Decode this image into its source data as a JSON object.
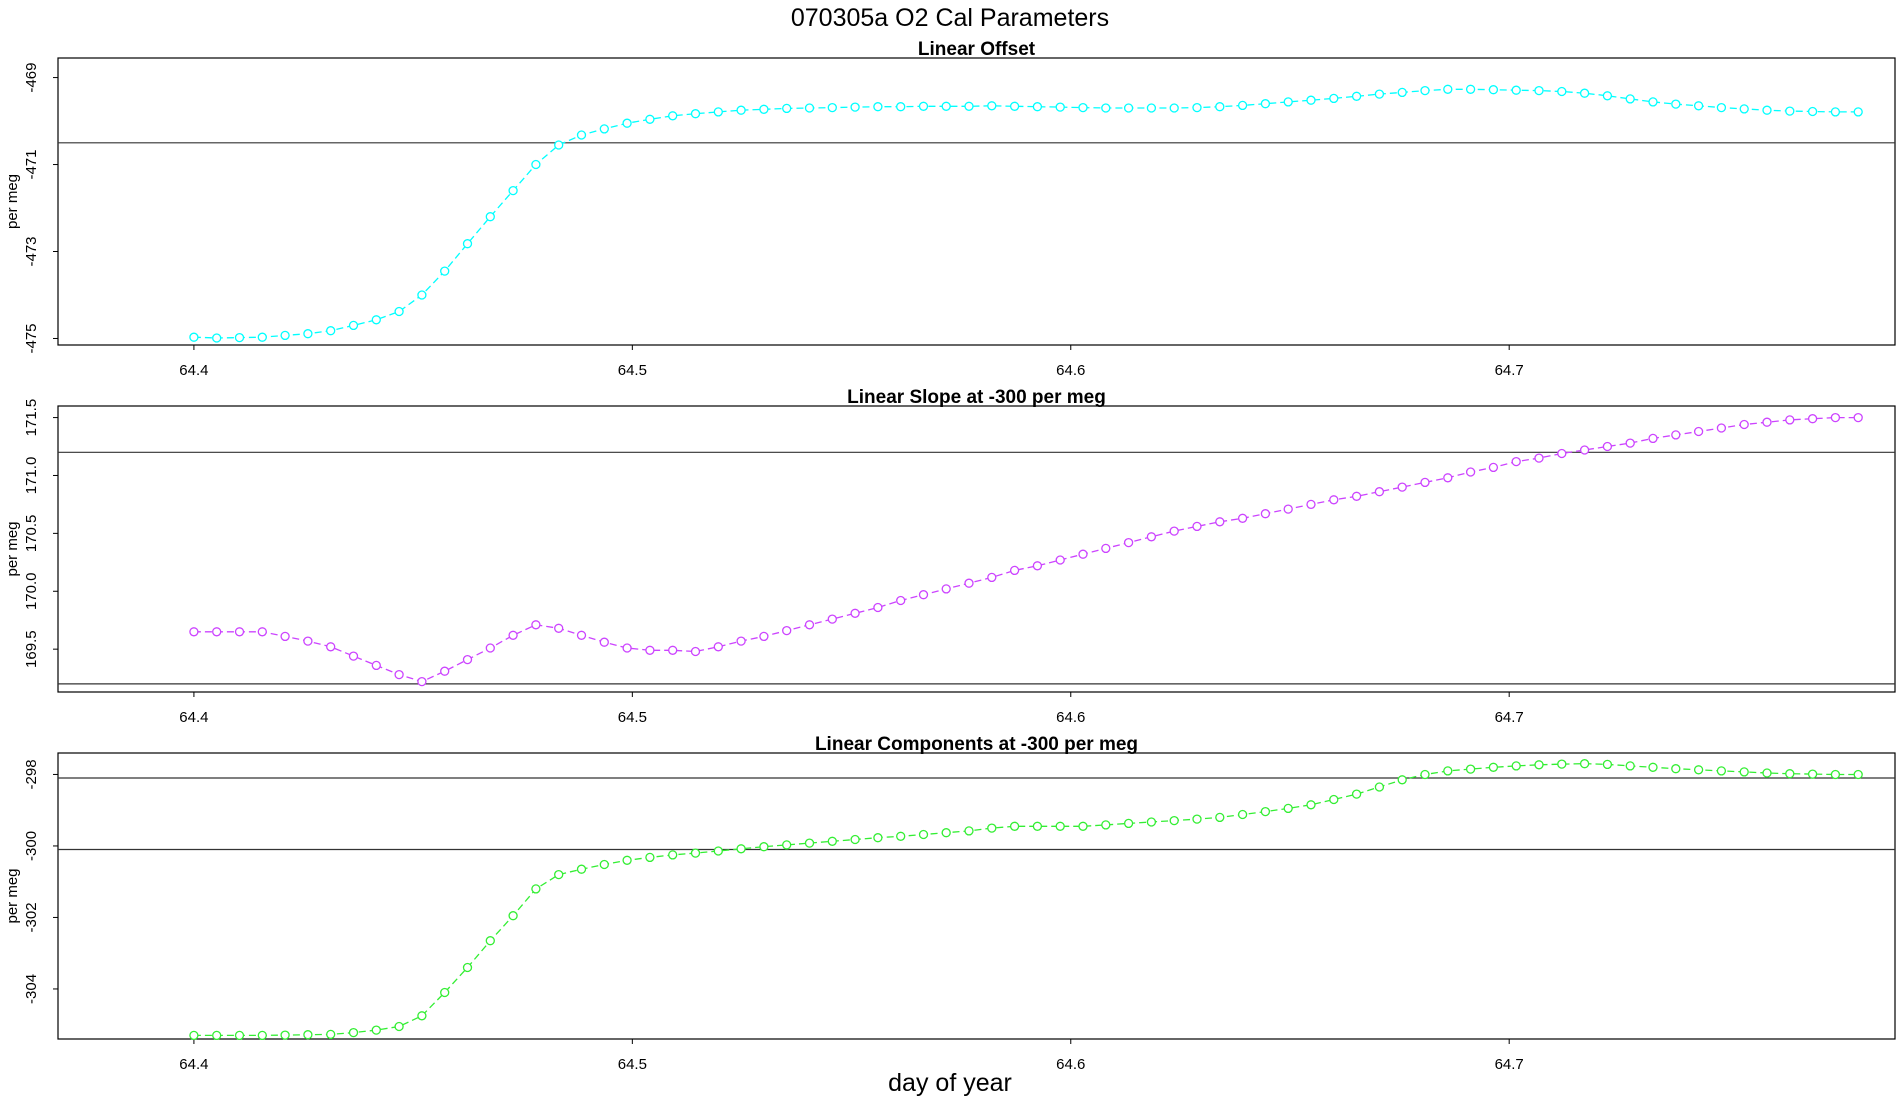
{
  "figure": {
    "title": "070305a   O2 Cal Parameters",
    "xlabel": "day of year"
  },
  "chart_data": [
    {
      "type": "line",
      "title": "Linear Offset",
      "ylabel": "per meg",
      "color": "#00ffff",
      "xlim": [
        64.369,
        64.788
      ],
      "ylim": [
        -475.15,
        -468.55
      ],
      "xticks": [
        "64.4",
        "64.5",
        "64.6",
        "64.7"
      ],
      "yticks": [
        "-469",
        "-471",
        "-473",
        "-475"
      ],
      "hlines": [
        -470.5
      ],
      "x": [
        64.4,
        64.4052,
        64.4104,
        64.4156,
        64.4208,
        64.426,
        64.4312,
        64.4364,
        64.4416,
        64.4468,
        64.452,
        64.4572,
        64.4624,
        64.4676,
        64.4728,
        64.478,
        64.4832,
        64.4884,
        64.4936,
        64.4988,
        64.504,
        64.5092,
        64.5144,
        64.5196,
        64.5248,
        64.53,
        64.5352,
        64.5404,
        64.5456,
        64.5508,
        64.556,
        64.5612,
        64.5664,
        64.5716,
        64.5768,
        64.582,
        64.5872,
        64.5924,
        64.5976,
        64.6028,
        64.608,
        64.6132,
        64.6184,
        64.6236,
        64.6288,
        64.634,
        64.6392,
        64.6444,
        64.6496,
        64.6548,
        64.66,
        64.6652,
        64.6704,
        64.6756,
        64.6808,
        64.686,
        64.6912,
        64.6964,
        64.7016,
        64.7068,
        64.712,
        64.7172,
        64.7224,
        64.7276,
        64.7328,
        64.738,
        64.7432,
        64.7484,
        64.7536,
        64.7588,
        64.764,
        64.7692,
        64.7744,
        64.7796
      ],
      "y": [
        -474.97,
        -474.99,
        -474.98,
        -474.97,
        -474.93,
        -474.89,
        -474.82,
        -474.7,
        -474.57,
        -474.38,
        -474.0,
        -473.45,
        -472.82,
        -472.2,
        -471.6,
        -471.0,
        -470.55,
        -470.32,
        -470.18,
        -470.05,
        -469.96,
        -469.88,
        -469.83,
        -469.79,
        -469.75,
        -469.73,
        -469.71,
        -469.7,
        -469.69,
        -469.68,
        -469.67,
        -469.67,
        -469.66,
        -469.66,
        -469.66,
        -469.65,
        -469.66,
        -469.67,
        -469.68,
        -469.69,
        -469.7,
        -469.7,
        -469.7,
        -469.7,
        -469.69,
        -469.67,
        -469.64,
        -469.6,
        -469.56,
        -469.52,
        -469.48,
        -469.43,
        -469.38,
        -469.34,
        -469.3,
        -469.27,
        -469.27,
        -469.28,
        -469.29,
        -469.3,
        -469.32,
        -469.36,
        -469.42,
        -469.49,
        -469.56,
        -469.61,
        -469.65,
        -469.69,
        -469.72,
        -469.75,
        -469.77,
        -469.78,
        -469.79,
        -469.79
      ]
    },
    {
      "type": "line",
      "title": "Linear Slope at -300 per meg",
      "ylabel": "per meg",
      "color": "#cc44ff",
      "xlim": [
        64.369,
        64.788
      ],
      "ylim": [
        169.13,
        171.6
      ],
      "xticks": [
        "64.4",
        "64.5",
        "64.6",
        "64.7"
      ],
      "yticks": [
        "169.5",
        "170.0",
        "170.5",
        "171.0",
        "171.5"
      ],
      "hlines": [
        169.2,
        171.2
      ],
      "x": [
        64.4,
        64.4052,
        64.4104,
        64.4156,
        64.4208,
        64.426,
        64.4312,
        64.4364,
        64.4416,
        64.4468,
        64.452,
        64.4572,
        64.4624,
        64.4676,
        64.4728,
        64.478,
        64.4832,
        64.4884,
        64.4936,
        64.4988,
        64.504,
        64.5092,
        64.5144,
        64.5196,
        64.5248,
        64.53,
        64.5352,
        64.5404,
        64.5456,
        64.5508,
        64.556,
        64.5612,
        64.5664,
        64.5716,
        64.5768,
        64.582,
        64.5872,
        64.5924,
        64.5976,
        64.6028,
        64.608,
        64.6132,
        64.6184,
        64.6236,
        64.6288,
        64.634,
        64.6392,
        64.6444,
        64.6496,
        64.6548,
        64.66,
        64.6652,
        64.6704,
        64.6756,
        64.6808,
        64.686,
        64.6912,
        64.6964,
        64.7016,
        64.7068,
        64.712,
        64.7172,
        64.7224,
        64.7276,
        64.7328,
        64.738,
        64.7432,
        64.7484,
        64.7536,
        64.7588,
        64.764,
        64.7692,
        64.7744,
        64.7796
      ],
      "y": [
        169.65,
        169.65,
        169.65,
        169.65,
        169.61,
        169.57,
        169.52,
        169.44,
        169.36,
        169.28,
        169.22,
        169.31,
        169.41,
        169.51,
        169.62,
        169.71,
        169.68,
        169.62,
        169.56,
        169.51,
        169.49,
        169.49,
        169.48,
        169.52,
        169.57,
        169.61,
        169.66,
        169.71,
        169.76,
        169.81,
        169.86,
        169.92,
        169.97,
        170.02,
        170.07,
        170.12,
        170.18,
        170.22,
        170.27,
        170.32,
        170.37,
        170.42,
        170.47,
        170.52,
        170.56,
        170.6,
        170.63,
        170.67,
        170.71,
        170.75,
        170.79,
        170.82,
        170.86,
        170.9,
        170.94,
        170.98,
        171.03,
        171.07,
        171.12,
        171.15,
        171.19,
        171.22,
        171.25,
        171.28,
        171.32,
        171.35,
        171.38,
        171.41,
        171.44,
        171.46,
        171.48,
        171.49,
        171.5,
        171.5
      ]
    },
    {
      "type": "line",
      "title": "Linear Components at -300 per meg",
      "ylabel": "per meg",
      "color": "#33ee33",
      "xlim": [
        64.369,
        64.788
      ],
      "ylim": [
        -305.4,
        -297.4
      ],
      "xticks": [
        "64.4",
        "64.5",
        "64.6",
        "64.7"
      ],
      "yticks": [
        "-298",
        "-300",
        "-302",
        "-304"
      ],
      "hlines": [
        -298.1,
        -300.1
      ],
      "x": [
        64.4,
        64.4052,
        64.4104,
        64.4156,
        64.4208,
        64.426,
        64.4312,
        64.4364,
        64.4416,
        64.4468,
        64.452,
        64.4572,
        64.4624,
        64.4676,
        64.4728,
        64.478,
        64.4832,
        64.4884,
        64.4936,
        64.4988,
        64.504,
        64.5092,
        64.5144,
        64.5196,
        64.5248,
        64.53,
        64.5352,
        64.5404,
        64.5456,
        64.5508,
        64.556,
        64.5612,
        64.5664,
        64.5716,
        64.5768,
        64.582,
        64.5872,
        64.5924,
        64.5976,
        64.6028,
        64.608,
        64.6132,
        64.6184,
        64.6236,
        64.6288,
        64.634,
        64.6392,
        64.6444,
        64.6496,
        64.6548,
        64.66,
        64.6652,
        64.6704,
        64.6756,
        64.6808,
        64.686,
        64.6912,
        64.6964,
        64.7016,
        64.7068,
        64.712,
        64.7172,
        64.7224,
        64.7276,
        64.7328,
        64.738,
        64.7432,
        64.7484,
        64.7536,
        64.7588,
        64.764,
        64.7692,
        64.7744,
        64.7796
      ],
      "y": [
        -305.3,
        -305.3,
        -305.3,
        -305.3,
        -305.29,
        -305.28,
        -305.27,
        -305.22,
        -305.15,
        -305.05,
        -304.75,
        -304.1,
        -303.4,
        -302.65,
        -301.95,
        -301.2,
        -300.8,
        -300.65,
        -300.52,
        -300.4,
        -300.32,
        -300.25,
        -300.2,
        -300.14,
        -300.08,
        -300.02,
        -299.97,
        -299.92,
        -299.87,
        -299.82,
        -299.77,
        -299.73,
        -299.68,
        -299.63,
        -299.58,
        -299.5,
        -299.45,
        -299.45,
        -299.45,
        -299.45,
        -299.41,
        -299.37,
        -299.33,
        -299.29,
        -299.25,
        -299.2,
        -299.12,
        -299.04,
        -298.95,
        -298.85,
        -298.7,
        -298.55,
        -298.35,
        -298.15,
        -298.0,
        -297.9,
        -297.85,
        -297.8,
        -297.76,
        -297.73,
        -297.71,
        -297.7,
        -297.72,
        -297.76,
        -297.8,
        -297.84,
        -297.87,
        -297.9,
        -297.93,
        -297.96,
        -297.98,
        -297.99,
        -298.0,
        -298.0
      ]
    }
  ]
}
